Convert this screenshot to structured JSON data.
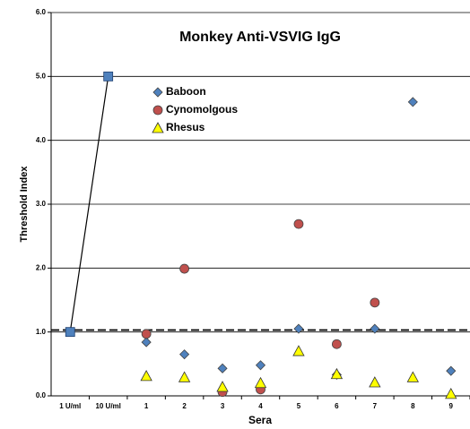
{
  "chart_data": {
    "type": "scatter",
    "title": "Monkey Anti-VSVIG IgG",
    "x_label": "Sera",
    "y_label": "Threshold Index",
    "categories": [
      "1 U/ml",
      "10 U/ml",
      "1",
      "2",
      "3",
      "4",
      "5",
      "6",
      "7",
      "8",
      "9"
    ],
    "series": [
      {
        "color": "#4f81bd",
        "marker": "square",
        "line": true,
        "values": [
          1.0,
          5.0,
          null,
          null,
          null,
          null,
          null,
          null,
          null,
          null,
          null
        ]
      },
      {
        "name": "Baboon",
        "color": "#4f81bd",
        "marker": "diamond",
        "values": [
          null,
          null,
          0.84,
          0.65,
          0.43,
          0.48,
          1.05,
          0.33,
          1.05,
          4.6,
          0.39
        ]
      },
      {
        "name": "Cynomolgous",
        "color": "#c0504d",
        "marker": "circle",
        "values": [
          null,
          null,
          0.97,
          1.99,
          0.06,
          0.1,
          2.69,
          0.81,
          1.46,
          null,
          null
        ]
      },
      {
        "name": "Rhesus",
        "color": "#ffff00",
        "marker": "triangle",
        "values": [
          null,
          null,
          0.31,
          0.29,
          0.14,
          0.2,
          0.7,
          0.34,
          0.21,
          0.29,
          0.03
        ]
      }
    ],
    "threshold": 1.03,
    "ylim": [
      0,
      6
    ],
    "yticks": [
      {
        "value": 0,
        "label": "0.0"
      },
      {
        "value": 1,
        "label": "1.0"
      },
      {
        "value": 2,
        "label": "2.0"
      },
      {
        "value": 3,
        "label": "3.0"
      },
      {
        "value": 4,
        "label": "4.0"
      },
      {
        "value": 5,
        "label": "5.0"
      },
      {
        "value": 6,
        "label": "6.0"
      }
    ],
    "grid": true
  }
}
